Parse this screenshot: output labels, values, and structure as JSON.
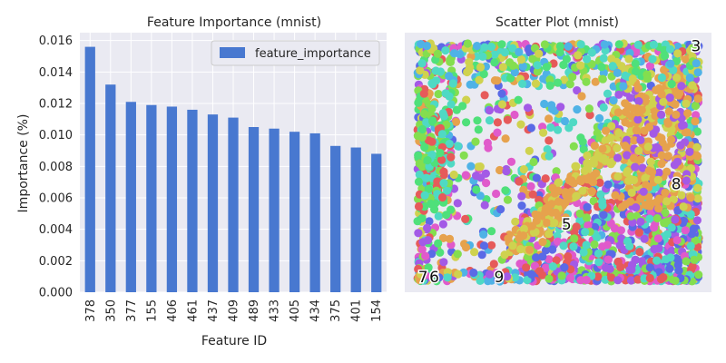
{
  "chart_data": [
    {
      "type": "bar",
      "title": "Feature Importance (mnist)",
      "xlabel": "Feature ID",
      "ylabel": "Importance (%)",
      "categories": [
        "378",
        "350",
        "377",
        "155",
        "406",
        "461",
        "437",
        "409",
        "489",
        "433",
        "405",
        "434",
        "375",
        "401",
        "154"
      ],
      "series": [
        {
          "name": "feature_importance",
          "values": [
            0.0156,
            0.0132,
            0.0121,
            0.0119,
            0.0118,
            0.0116,
            0.0113,
            0.0111,
            0.0105,
            0.0104,
            0.0102,
            0.0101,
            0.0093,
            0.0092,
            0.0088
          ]
        }
      ],
      "yticks": [
        "0.000",
        "0.002",
        "0.004",
        "0.006",
        "0.008",
        "0.010",
        "0.012",
        "0.014",
        "0.016"
      ],
      "ylim": [
        0,
        0.0165
      ],
      "grid": true,
      "legend": "top-right",
      "color": "#4878d0",
      "background": "#eaeaf2"
    },
    {
      "type": "scatter",
      "title": "Scatter Plot (mnist)",
      "grid": false,
      "xlim": [
        0,
        1
      ],
      "ylim": [
        0,
        1
      ],
      "cluster_labels": [
        {
          "text": "3",
          "x": 0.99,
          "y": 0.99
        },
        {
          "text": "8",
          "x": 0.92,
          "y": 0.41
        },
        {
          "text": "5",
          "x": 0.53,
          "y": 0.24
        },
        {
          "text": "9",
          "x": 0.29,
          "y": 0.02
        },
        {
          "text": "7",
          "x": 0.02,
          "y": 0.02
        },
        {
          "text": "6",
          "x": 0.06,
          "y": 0.02
        }
      ],
      "palette": [
        "#e65a5a",
        "#e6a24d",
        "#cfd24f",
        "#84de4f",
        "#4fe07a",
        "#4fd9c4",
        "#4fb2e6",
        "#5a6ae6",
        "#a35ae6",
        "#e05acb"
      ],
      "background": "#eaeaf2"
    }
  ]
}
